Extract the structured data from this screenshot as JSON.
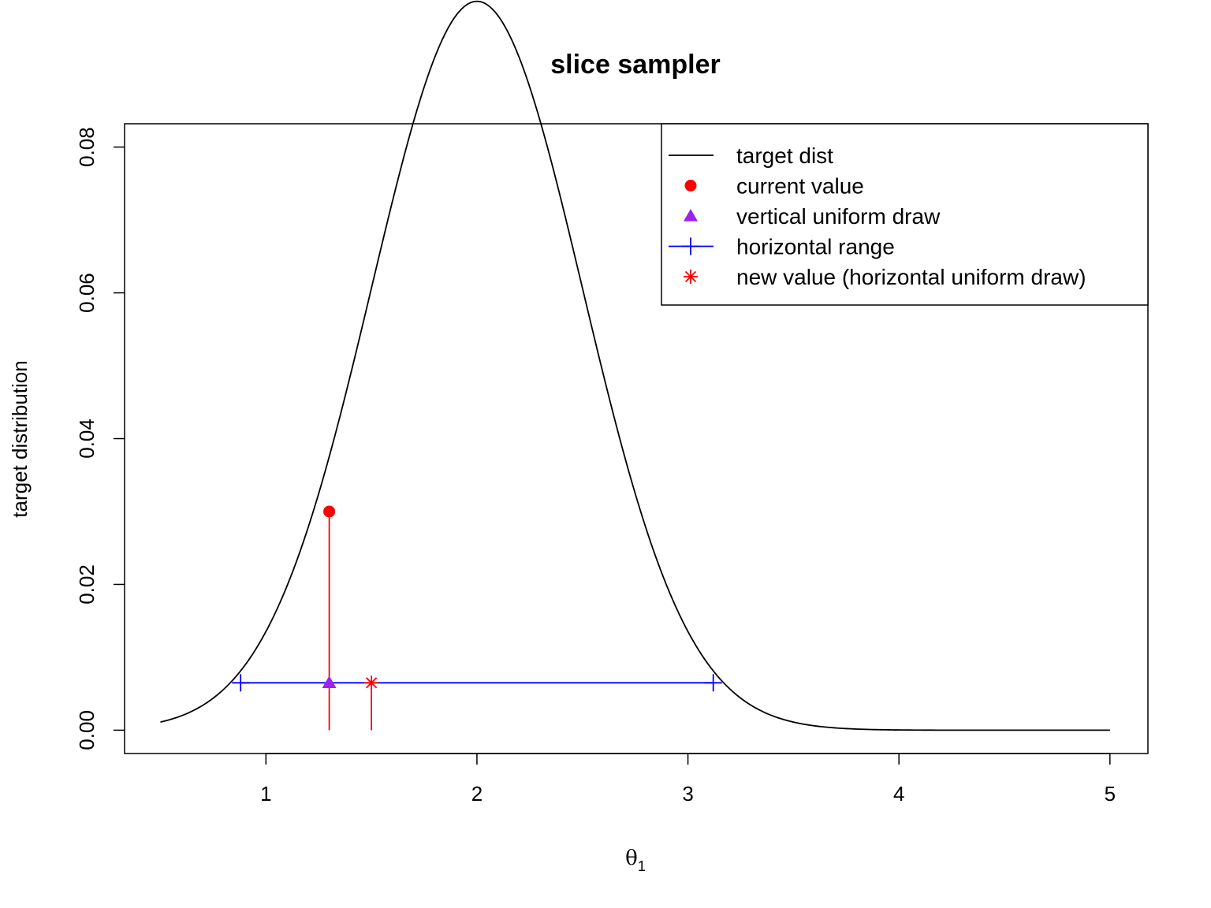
{
  "chart_data": {
    "type": "line",
    "title": "slice sampler",
    "xlabel": "θ",
    "xlabel_subscript": "1",
    "ylabel": "target distribution",
    "xlim": [
      0.33,
      5.18
    ],
    "ylim": [
      -0.0032,
      0.0832
    ],
    "x_ticks": [
      1,
      2,
      3,
      4,
      5
    ],
    "x_tick_labels": [
      "1",
      "2",
      "3",
      "4",
      "5"
    ],
    "y_ticks": [
      0.0,
      0.02,
      0.04,
      0.06,
      0.08
    ],
    "y_tick_labels": [
      "0.00",
      "0.02",
      "0.04",
      "0.06",
      "0.08"
    ],
    "grid": false,
    "legend_position": "top-right",
    "series": [
      {
        "name": "target dist",
        "kind": "line",
        "color": "#000000",
        "curve": {
          "family": "normal",
          "mean": 2.0,
          "sd": 0.5,
          "scale": 0.1,
          "x_from": 0.5,
          "x_to": 5.0
        }
      },
      {
        "name": "current value",
        "kind": "point",
        "marker": "filled-circle",
        "color": "#ff0000",
        "x": 1.3,
        "y": 0.03
      },
      {
        "name": "vertical uniform draw",
        "kind": "point",
        "marker": "filled-triangle",
        "color": "#a020f0",
        "x": 1.3,
        "y": 0.0065
      },
      {
        "name": "horizontal range",
        "kind": "segment",
        "marker": "plus",
        "color": "#0000ff",
        "x": [
          0.88,
          3.12
        ],
        "y": 0.0065
      },
      {
        "name": "new value (horizontal uniform draw)",
        "kind": "point",
        "marker": "asterisk",
        "color": "#ff0000",
        "x": 1.5,
        "y": 0.0065
      }
    ],
    "vertical_segments": [
      {
        "x": 1.3,
        "y_from": 0,
        "y_to": 0.03,
        "color": "#ff0000"
      },
      {
        "x": 1.5,
        "y_from": 0,
        "y_to": 0.0065,
        "color": "#ff0000"
      }
    ]
  }
}
